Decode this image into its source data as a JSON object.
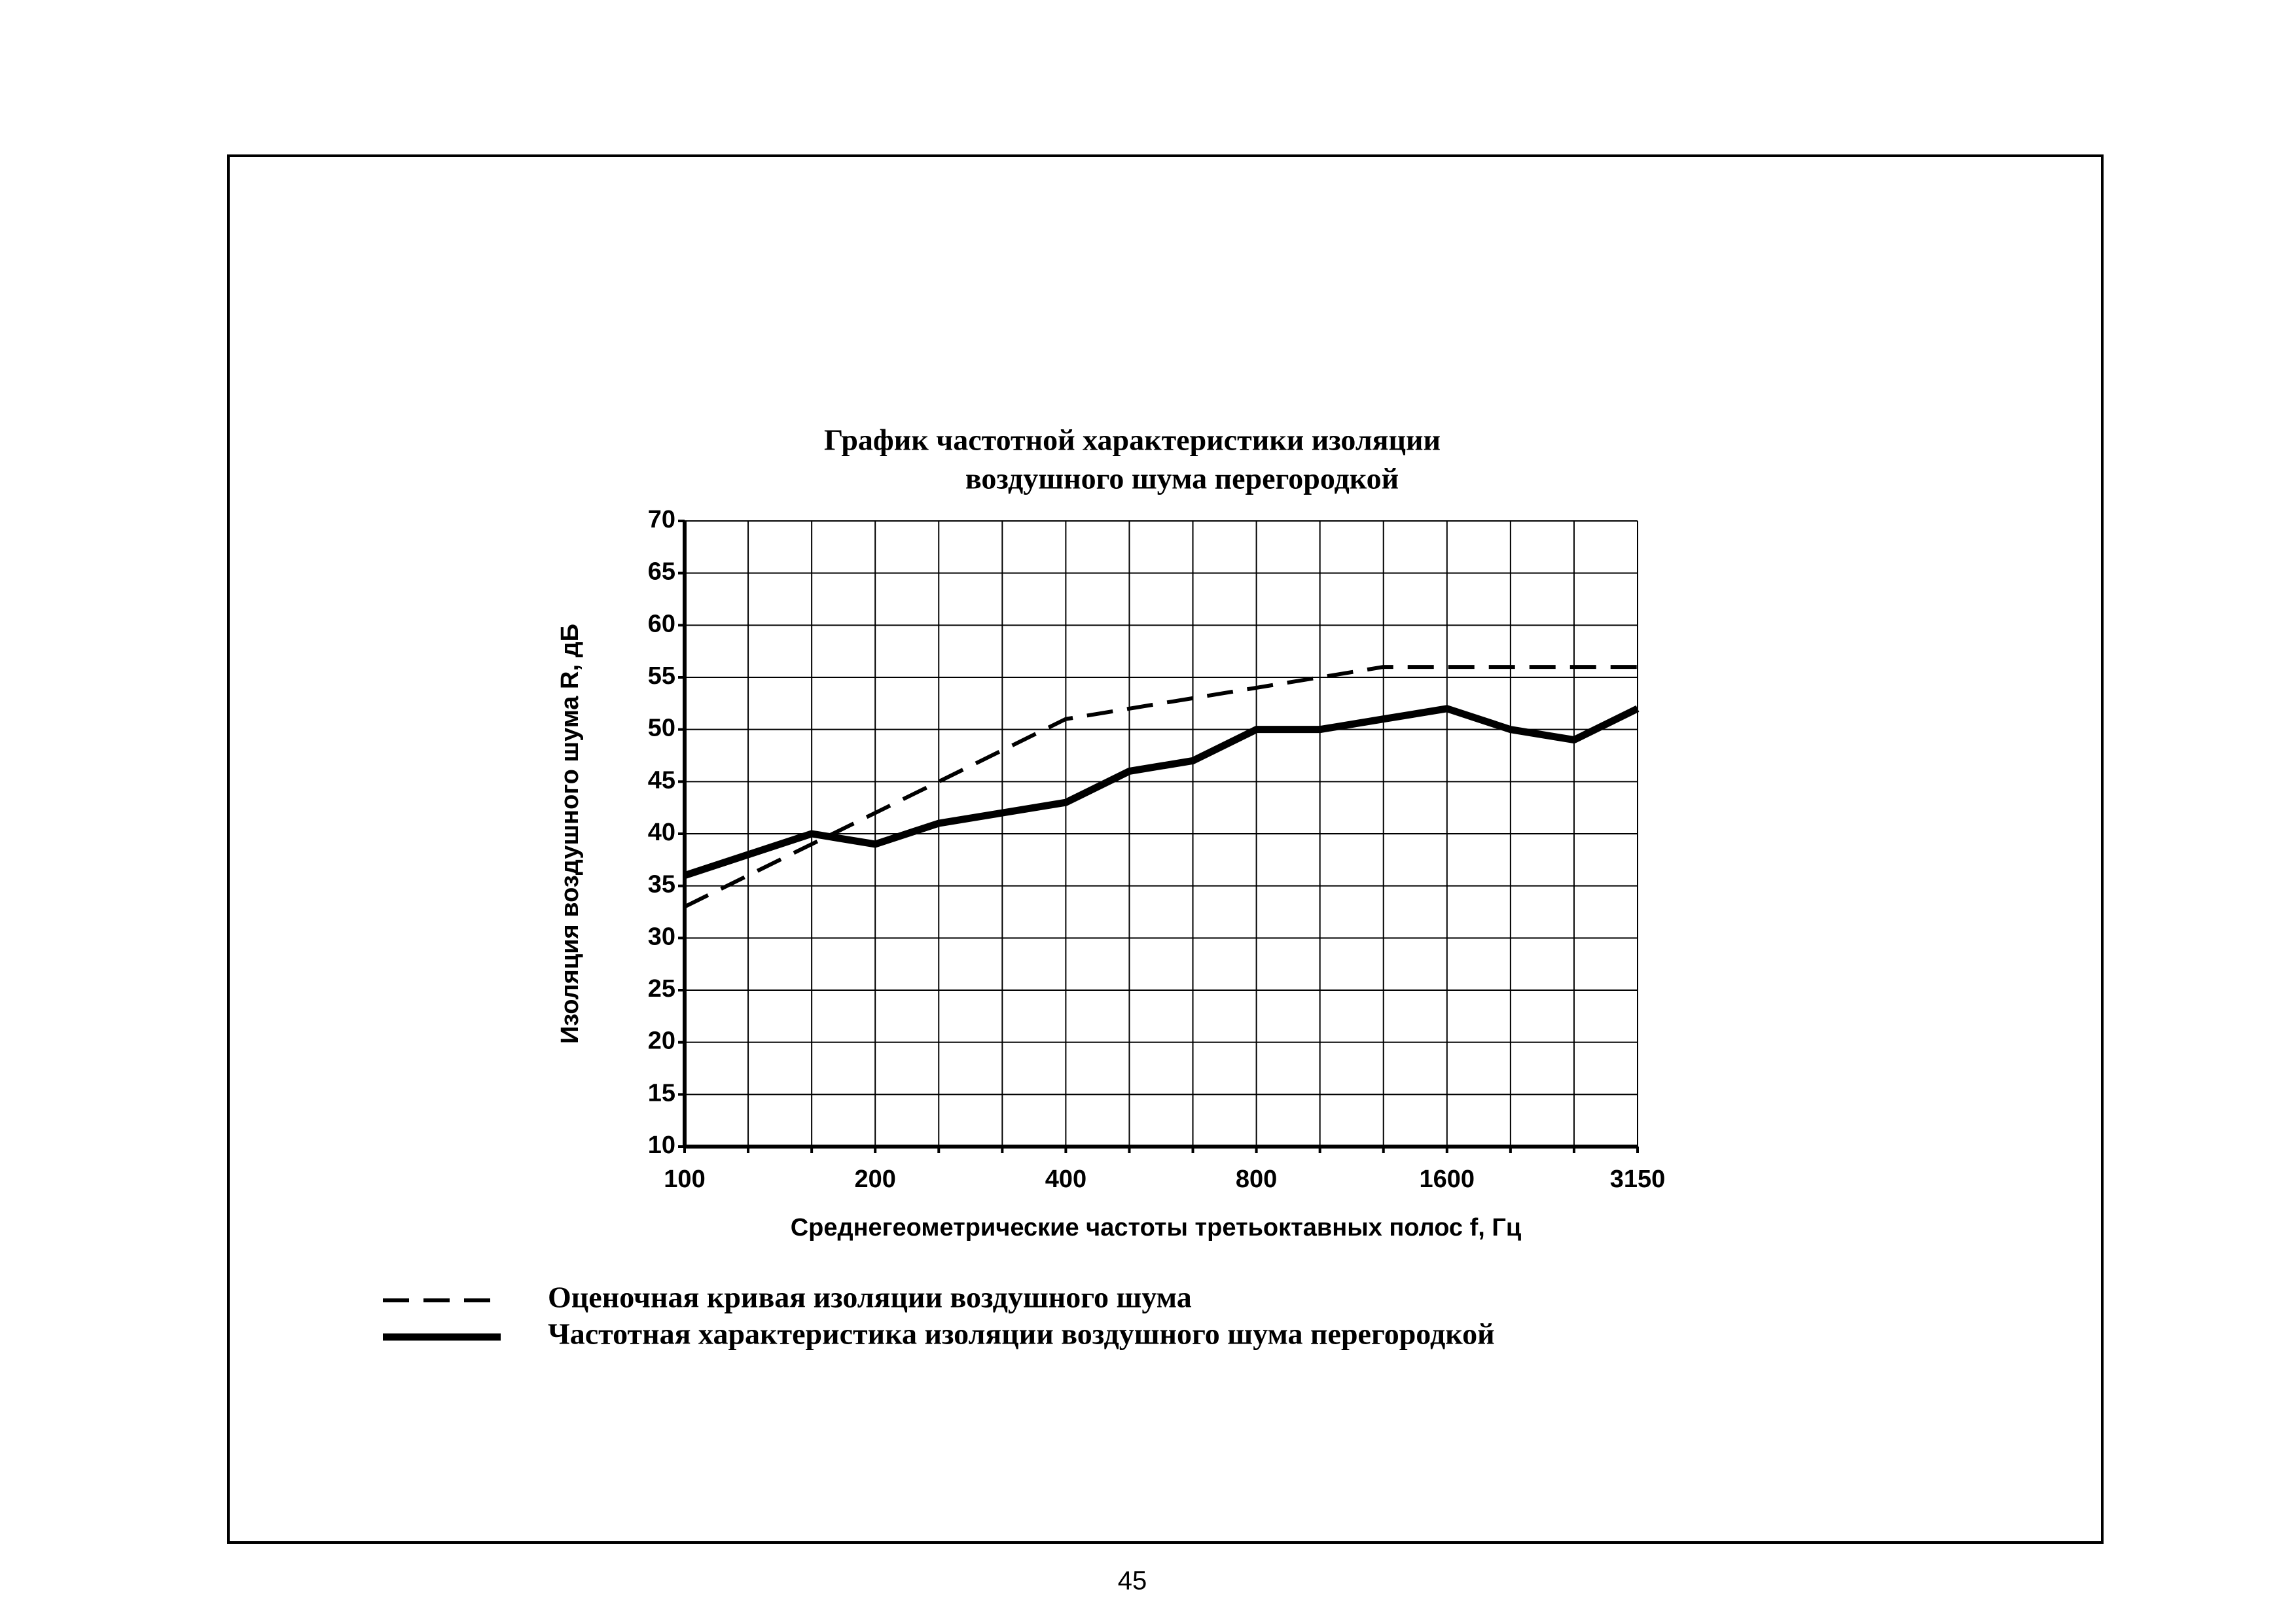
{
  "page_number": "45",
  "chart_data": {
    "type": "line",
    "title": [
      "График частотной характеристики изоляции",
      "воздушного шума перегородкой"
    ],
    "x_label": "Среднегеометрические частоты третьоктавных полос f,  Гц",
    "y_label": "Изоляция воздушного  шума  R,  дБ",
    "categories": [
      "100",
      null,
      null,
      "200",
      null,
      null,
      "400",
      null,
      null,
      "800",
      null,
      null,
      "1600",
      null,
      null,
      "3150"
    ],
    "series": [
      {
        "name": "Оценочная кривая  изоляции воздушного шума",
        "color": "#000000",
        "style": "dashed",
        "values": [
          33,
          36,
          39,
          42,
          45,
          48,
          51,
          52,
          53,
          54,
          55,
          56,
          56,
          56,
          56,
          56
        ]
      },
      {
        "name": "Частотная характеристика изоляции воздушного шума перегородкой",
        "color": "#000000",
        "style": "solid",
        "values": [
          36,
          38,
          40,
          39,
          41,
          42,
          43,
          46,
          47,
          50,
          50,
          51,
          52,
          50,
          49,
          52
        ]
      }
    ],
    "ylim": [
      10,
      70
    ],
    "yticks": [
      10,
      15,
      20,
      25,
      30,
      35,
      40,
      45,
      50,
      55,
      60,
      65,
      70
    ],
    "grid": true,
    "legend": "bottom-left"
  }
}
